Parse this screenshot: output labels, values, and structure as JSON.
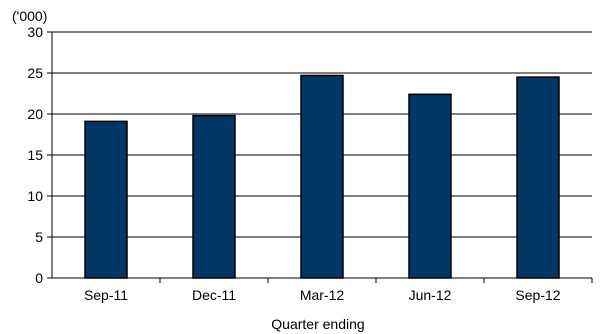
{
  "chart_data": {
    "type": "bar",
    "title": "",
    "unit_label": "('000)",
    "xlabel": "Quarter ending",
    "ylabel": "",
    "categories": [
      "Sep-11",
      "Dec-11",
      "Mar-12",
      "Jun-12",
      "Sep-12"
    ],
    "series": [
      {
        "values": [
          19.1,
          19.8,
          24.7,
          22.4,
          24.5
        ]
      }
    ],
    "ylim": [
      0,
      30
    ],
    "yticks": [
      0,
      5,
      10,
      15,
      20,
      25,
      30
    ],
    "grid": true,
    "legend": "none",
    "colors": {
      "bar_fill": "#003865",
      "bar_stroke": "#000000",
      "grid": "#000000",
      "axis": "#000000"
    }
  }
}
